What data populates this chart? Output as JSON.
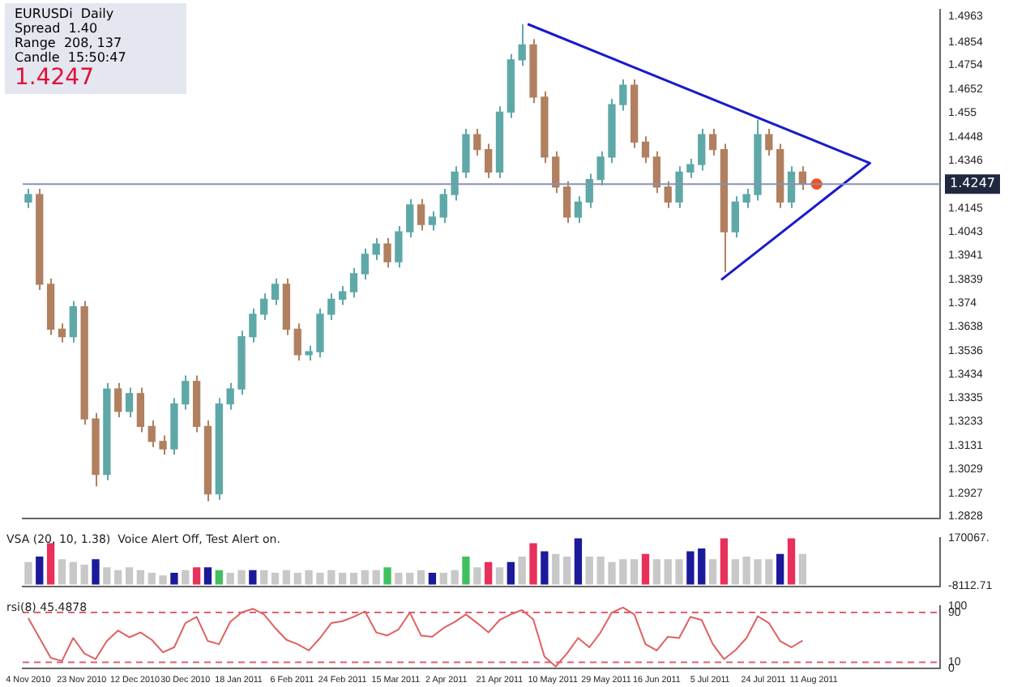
{
  "chart_data": [
    {
      "type": "candlestick",
      "title": "EURUSDi  Daily",
      "annotations": [
        "Spread  1.40",
        "Range  208, 137",
        "Candle  15:50:47",
        "1.4247"
      ],
      "xlim": [
        "2010-11-02",
        "2011-09-25"
      ],
      "ylim": [
        1.282,
        1.499
      ],
      "yticks": [
        1.4963,
        1.4854,
        1.4754,
        1.4652,
        1.455,
        1.4448,
        1.4346,
        1.4145,
        1.4043,
        1.3941,
        1.3839,
        1.374,
        1.3638,
        1.3536,
        1.3434,
        1.3335,
        1.3233,
        1.3131,
        1.3029,
        1.2927,
        1.2828
      ],
      "tick_labels": "y",
      "grid": false,
      "legend": false,
      "ref_lines": [
        {
          "axis": "y",
          "value": 1.4247,
          "label": "1.4247",
          "color": "#8592b4"
        }
      ],
      "x": [
        "2010-11-04",
        "2010-11-08",
        "2010-11-12",
        "2010-11-16",
        "2010-11-20",
        "2010-11-24",
        "2010-11-28",
        "2010-12-02",
        "2010-12-06",
        "2010-12-10",
        "2010-12-14",
        "2010-12-18",
        "2010-12-22",
        "2010-12-26",
        "2010-12-30",
        "2011-01-03",
        "2011-01-07",
        "2011-01-11",
        "2011-01-15",
        "2011-01-19",
        "2011-01-23",
        "2011-01-27",
        "2011-01-31",
        "2011-02-04",
        "2011-02-08",
        "2011-02-12",
        "2011-02-16",
        "2011-02-20",
        "2011-02-24",
        "2011-02-28",
        "2011-03-04",
        "2011-03-08",
        "2011-03-12",
        "2011-03-16",
        "2011-03-20",
        "2011-03-24",
        "2011-03-28",
        "2011-04-01",
        "2011-04-05",
        "2011-04-09",
        "2011-04-13",
        "2011-04-17",
        "2011-04-21",
        "2011-04-25",
        "2011-04-29",
        "2011-05-03",
        "2011-05-07",
        "2011-05-11",
        "2011-05-15",
        "2011-05-19",
        "2011-05-23",
        "2011-05-27",
        "2011-05-31",
        "2011-06-04",
        "2011-06-08",
        "2011-06-12",
        "2011-06-16",
        "2011-06-20",
        "2011-06-24",
        "2011-06-28",
        "2011-07-02",
        "2011-07-06",
        "2011-07-10",
        "2011-07-14",
        "2011-07-18",
        "2011-07-22",
        "2011-07-26",
        "2011-07-30",
        "2011-08-03",
        "2011-08-07"
      ],
      "ohlc": [
        [
          1.417,
          1.4227,
          1.4145,
          1.4202
        ],
        [
          1.4202,
          1.4227,
          1.3794,
          1.3819
        ],
        [
          1.3819,
          1.3844,
          1.3602,
          1.3627
        ],
        [
          1.3627,
          1.3652,
          1.357,
          1.3595
        ],
        [
          1.3595,
          1.3748,
          1.357,
          1.3723
        ],
        [
          1.3723,
          1.3748,
          1.3219,
          1.3244
        ],
        [
          1.3244,
          1.3269,
          1.2956,
          1.3007
        ],
        [
          1.3007,
          1.3397,
          1.2982,
          1.3372
        ],
        [
          1.3372,
          1.3397,
          1.3251,
          1.3276
        ],
        [
          1.3276,
          1.3377,
          1.3251,
          1.3352
        ],
        [
          1.3352,
          1.3377,
          1.3187,
          1.3212
        ],
        [
          1.3212,
          1.3237,
          1.3123,
          1.3148
        ],
        [
          1.3148,
          1.3173,
          1.3091,
          1.3116
        ],
        [
          1.3116,
          1.3333,
          1.3091,
          1.3308
        ],
        [
          1.3308,
          1.3429,
          1.3283,
          1.3404
        ],
        [
          1.3404,
          1.3429,
          1.3187,
          1.3212
        ],
        [
          1.3212,
          1.3237,
          1.2892,
          1.2924
        ],
        [
          1.2924,
          1.3333,
          1.2899,
          1.3308
        ],
        [
          1.3308,
          1.3397,
          1.3283,
          1.3372
        ],
        [
          1.3372,
          1.362,
          1.3347,
          1.3595
        ],
        [
          1.3595,
          1.3716,
          1.357,
          1.3691
        ],
        [
          1.3691,
          1.378,
          1.3666,
          1.3755
        ],
        [
          1.3755,
          1.3844,
          1.373,
          1.3819
        ],
        [
          1.3819,
          1.3844,
          1.3602,
          1.3627
        ],
        [
          1.3627,
          1.3652,
          1.3493,
          1.3518
        ],
        [
          1.3518,
          1.3556,
          1.3493,
          1.3531
        ],
        [
          1.3531,
          1.3716,
          1.3506,
          1.3691
        ],
        [
          1.3691,
          1.378,
          1.3666,
          1.3755
        ],
        [
          1.3755,
          1.3812,
          1.373,
          1.3787
        ],
        [
          1.3787,
          1.3889,
          1.3762,
          1.3864
        ],
        [
          1.3864,
          1.3972,
          1.3839,
          1.3947
        ],
        [
          1.3947,
          1.4016,
          1.3922,
          1.3991
        ],
        [
          1.3991,
          1.4016,
          1.389,
          1.3915
        ],
        [
          1.3915,
          1.4068,
          1.389,
          1.4043
        ],
        [
          1.4043,
          1.4183,
          1.4018,
          1.4158
        ],
        [
          1.4158,
          1.4183,
          1.4049,
          1.4074
        ],
        [
          1.4074,
          1.4131,
          1.4049,
          1.4106
        ],
        [
          1.4106,
          1.4227,
          1.4081,
          1.4202
        ],
        [
          1.4202,
          1.4323,
          1.4177,
          1.4298
        ],
        [
          1.4298,
          1.4483,
          1.4273,
          1.4458
        ],
        [
          1.4458,
          1.4483,
          1.4369,
          1.4394
        ],
        [
          1.4394,
          1.4419,
          1.4273,
          1.4298
        ],
        [
          1.4298,
          1.4579,
          1.4273,
          1.4554
        ],
        [
          1.4554,
          1.4802,
          1.4529,
          1.4777
        ],
        [
          1.4777,
          1.493,
          1.4752,
          1.4841
        ],
        [
          1.4841,
          1.4866,
          1.4593,
          1.4618
        ],
        [
          1.4618,
          1.4643,
          1.4337,
          1.4362
        ],
        [
          1.4362,
          1.4387,
          1.4209,
          1.4234
        ],
        [
          1.4234,
          1.4259,
          1.4081,
          1.4106
        ],
        [
          1.4106,
          1.4195,
          1.4081,
          1.417
        ],
        [
          1.417,
          1.4291,
          1.4145,
          1.4266
        ],
        [
          1.4266,
          1.4387,
          1.4241,
          1.4362
        ],
        [
          1.4362,
          1.4611,
          1.4337,
          1.4586
        ],
        [
          1.4586,
          1.4694,
          1.4561,
          1.4669
        ],
        [
          1.4669,
          1.4694,
          1.4401,
          1.4426
        ],
        [
          1.4426,
          1.4451,
          1.4337,
          1.4362
        ],
        [
          1.4362,
          1.4387,
          1.4209,
          1.4234
        ],
        [
          1.4234,
          1.4259,
          1.4145,
          1.417
        ],
        [
          1.417,
          1.4323,
          1.4145,
          1.4298
        ],
        [
          1.4298,
          1.4355,
          1.4273,
          1.433
        ],
        [
          1.433,
          1.4483,
          1.4305,
          1.4458
        ],
        [
          1.4458,
          1.4483,
          1.4369,
          1.4394
        ],
        [
          1.4394,
          1.4419,
          1.387,
          1.4043
        ],
        [
          1.4043,
          1.4195,
          1.4018,
          1.417
        ],
        [
          1.417,
          1.4227,
          1.4145,
          1.4202
        ],
        [
          1.4202,
          1.4522,
          1.4177,
          1.4458
        ],
        [
          1.4458,
          1.4483,
          1.4369,
          1.4394
        ],
        [
          1.4394,
          1.4419,
          1.4145,
          1.417
        ],
        [
          1.417,
          1.4323,
          1.4145,
          1.4298
        ],
        [
          1.4298,
          1.4323,
          1.4222,
          1.4247
        ]
      ],
      "series": [
        {
          "type": "line",
          "color": "#1a1acc",
          "x": [
            "2011-05-01",
            "2011-08-31",
            "2011-07-09"
          ],
          "values": [
            1.493,
            1.4336,
            1.3838
          ]
        },
        {
          "type": "scatter",
          "marker": "circle",
          "color": "#f05020",
          "x": [
            "2011-08-12"
          ],
          "values": [
            1.4247
          ]
        }
      ]
    },
    {
      "type": "bar",
      "title": "VSA (20, 10, 1.38)  Voice Alert Off, Test Alert on.",
      "xlim": [
        "2010-11-02",
        "2011-09-25"
      ],
      "ylim": [
        -8112.71,
        170067
      ],
      "yticks": [
        {
          "value": 170067,
          "label": "170067."
        },
        -8112.71
      ],
      "tick_labels": "y",
      "grid": false,
      "legend": false,
      "x": [
        "2010-11-04",
        "2010-11-08",
        "2010-11-12",
        "2010-11-16",
        "2010-11-20",
        "2010-11-24",
        "2010-11-28",
        "2010-12-02",
        "2010-12-06",
        "2010-12-10",
        "2010-12-14",
        "2010-12-18",
        "2010-12-22",
        "2010-12-26",
        "2010-12-30",
        "2011-01-03",
        "2011-01-07",
        "2011-01-11",
        "2011-01-15",
        "2011-01-19",
        "2011-01-23",
        "2011-01-27",
        "2011-01-31",
        "2011-02-04",
        "2011-02-08",
        "2011-02-12",
        "2011-02-16",
        "2011-02-20",
        "2011-02-24",
        "2011-02-28",
        "2011-03-04",
        "2011-03-08",
        "2011-03-12",
        "2011-03-16",
        "2011-03-20",
        "2011-03-24",
        "2011-03-28",
        "2011-04-01",
        "2011-04-05",
        "2011-04-09",
        "2011-04-13",
        "2011-04-17",
        "2011-04-21",
        "2011-04-25",
        "2011-04-29",
        "2011-05-03",
        "2011-05-07",
        "2011-05-11",
        "2011-05-15",
        "2011-05-19",
        "2011-05-23",
        "2011-05-27",
        "2011-05-31",
        "2011-06-04",
        "2011-06-08",
        "2011-06-12",
        "2011-06-16",
        "2011-06-20",
        "2011-06-24",
        "2011-06-28",
        "2011-07-02",
        "2011-07-06",
        "2011-07-10",
        "2011-07-14",
        "2011-07-18",
        "2011-07-22",
        "2011-07-26",
        "2011-07-30",
        "2011-08-03",
        "2011-08-07"
      ],
      "values": [
        80000,
        100000,
        150000,
        90000,
        80000,
        70000,
        90000,
        60000,
        50000,
        60000,
        50000,
        40000,
        30000,
        40000,
        50000,
        60000,
        60000,
        50000,
        40000,
        50000,
        50000,
        50000,
        40000,
        50000,
        40000,
        50000,
        40000,
        50000,
        40000,
        40000,
        50000,
        50000,
        60000,
        40000,
        40000,
        50000,
        40000,
        40000,
        50000,
        100000,
        60000,
        80000,
        60000,
        80000,
        100000,
        150000,
        120000,
        110000,
        100000,
        170000,
        100000,
        100000,
        80000,
        90000,
        90000,
        110000,
        90000,
        90000,
        90000,
        120000,
        130000,
        90000,
        170000,
        90000,
        100000,
        90000,
        90000,
        110000,
        170000,
        110000
      ],
      "colors": [
        "#c8c8c8",
        "#1a1a9a",
        "#e8305a",
        "#c8c8c8",
        "#c8c8c8",
        "#c8c8c8",
        "#1a1a9a",
        "#c8c8c8",
        "#c8c8c8",
        "#c8c8c8",
        "#c8c8c8",
        "#c8c8c8",
        "#c8c8c8",
        "#1a1a9a",
        "#c8c8c8",
        "#e8305a",
        "#1a1a9a",
        "#40c060",
        "#c8c8c8",
        "#c8c8c8",
        "#1a1a9a",
        "#c8c8c8",
        "#c8c8c8",
        "#c8c8c8",
        "#c8c8c8",
        "#c8c8c8",
        "#c8c8c8",
        "#c8c8c8",
        "#c8c8c8",
        "#c8c8c8",
        "#c8c8c8",
        "#c8c8c8",
        "#40c060",
        "#c8c8c8",
        "#c8c8c8",
        "#c8c8c8",
        "#1a1a9a",
        "#c8c8c8",
        "#c8c8c8",
        "#40c060",
        "#c8c8c8",
        "#e8305a",
        "#c8c8c8",
        "#1a1a9a",
        "#c8c8c8",
        "#e8305a",
        "#1a1a9a",
        "#c8c8c8",
        "#c8c8c8",
        "#1a1a9a",
        "#c8c8c8",
        "#c8c8c8",
        "#c8c8c8",
        "#c8c8c8",
        "#c8c8c8",
        "#e8305a",
        "#c8c8c8",
        "#c8c8c8",
        "#c8c8c8",
        "#1a1a9a",
        "#1a1a9a",
        "#c8c8c8",
        "#e8305a",
        "#c8c8c8",
        "#c8c8c8",
        "#c8c8c8",
        "#c8c8c8",
        "#1a1a9a",
        "#e8305a",
        "#c8c8c8"
      ]
    },
    {
      "type": "line",
      "title": "rsi(8) 45.4878",
      "color": "#e06060",
      "marker": "none",
      "xlim": [
        "2010-11-02",
        "2011-09-25"
      ],
      "ylim": [
        0,
        100
      ],
      "yticks": [
        100,
        90,
        10,
        0
      ],
      "grid": false,
      "legend": false,
      "xticks": [
        {
          "value": "2010-11-04",
          "label": "4 Nov 2010"
        },
        {
          "value": "2010-11-23",
          "label": "23 Nov 2010"
        },
        {
          "value": "2010-12-12",
          "label": "12 Dec 2010"
        },
        {
          "value": "2010-12-30",
          "label": "30 Dec 2010"
        },
        {
          "value": "2011-01-18",
          "label": "18 Jan 2011"
        },
        {
          "value": "2011-02-06",
          "label": "6 Feb 2011"
        },
        {
          "value": "2011-02-24",
          "label": "24 Feb 2011"
        },
        {
          "value": "2011-03-15",
          "label": "15 Mar 2011"
        },
        {
          "value": "2011-04-02",
          "label": "2 Apr 2011"
        },
        {
          "value": "2011-04-21",
          "label": "21 Apr 2011"
        },
        {
          "value": "2011-05-10",
          "label": "10 May 2011"
        },
        {
          "value": "2011-05-29",
          "label": "29 May 2011"
        },
        {
          "value": "2011-06-16",
          "label": "16 Jun 2011"
        },
        {
          "value": "2011-07-05",
          "label": "5 Jul 2011"
        },
        {
          "value": "2011-07-24",
          "label": "24 Jul 2011"
        },
        {
          "value": "2011-08-11",
          "label": "11 Aug 2011"
        }
      ],
      "ref_lines": [
        {
          "axis": "y",
          "value": 90,
          "color": "#e06070",
          "line_style": "dashed"
        },
        {
          "axis": "y",
          "value": 10,
          "color": "#e06070",
          "line_style": "dashed"
        }
      ],
      "x": [
        "2010-11-04",
        "2010-11-08",
        "2010-11-12",
        "2010-11-16",
        "2010-11-20",
        "2010-11-24",
        "2010-11-28",
        "2010-12-02",
        "2010-12-06",
        "2010-12-10",
        "2010-12-14",
        "2010-12-18",
        "2010-12-22",
        "2010-12-26",
        "2010-12-30",
        "2011-01-03",
        "2011-01-07",
        "2011-01-11",
        "2011-01-15",
        "2011-01-19",
        "2011-01-23",
        "2011-01-27",
        "2011-01-31",
        "2011-02-04",
        "2011-02-08",
        "2011-02-12",
        "2011-02-16",
        "2011-02-20",
        "2011-02-24",
        "2011-02-28",
        "2011-03-04",
        "2011-03-08",
        "2011-03-12",
        "2011-03-16",
        "2011-03-20",
        "2011-03-24",
        "2011-03-28",
        "2011-04-01",
        "2011-04-05",
        "2011-04-09",
        "2011-04-13",
        "2011-04-17",
        "2011-04-21",
        "2011-04-25",
        "2011-04-29",
        "2011-05-03",
        "2011-05-07",
        "2011-05-11",
        "2011-05-15",
        "2011-05-19",
        "2011-05-23",
        "2011-05-27",
        "2011-05-31",
        "2011-06-04",
        "2011-06-08",
        "2011-06-12",
        "2011-06-16",
        "2011-06-20",
        "2011-06-24",
        "2011-06-28",
        "2011-07-02",
        "2011-07-06",
        "2011-07-10",
        "2011-07-14",
        "2011-07-18",
        "2011-07-22",
        "2011-07-26",
        "2011-07-30",
        "2011-08-03",
        "2011-08-07"
      ],
      "values": [
        81,
        49,
        17,
        12,
        49,
        24,
        15,
        44,
        61,
        50,
        58,
        46,
        26,
        34,
        73,
        83,
        44,
        39,
        75,
        90,
        96,
        87,
        65,
        46,
        39,
        29,
        49,
        73,
        76,
        83,
        92,
        58,
        53,
        63,
        90,
        53,
        51,
        65,
        75,
        87,
        73,
        58,
        78,
        87,
        94,
        79,
        19,
        3,
        24,
        49,
        34,
        58,
        90,
        98,
        87,
        39,
        29,
        51,
        49,
        83,
        78,
        39,
        15,
        29,
        49,
        84,
        73,
        44,
        34,
        45
      ]
    }
  ]
}
